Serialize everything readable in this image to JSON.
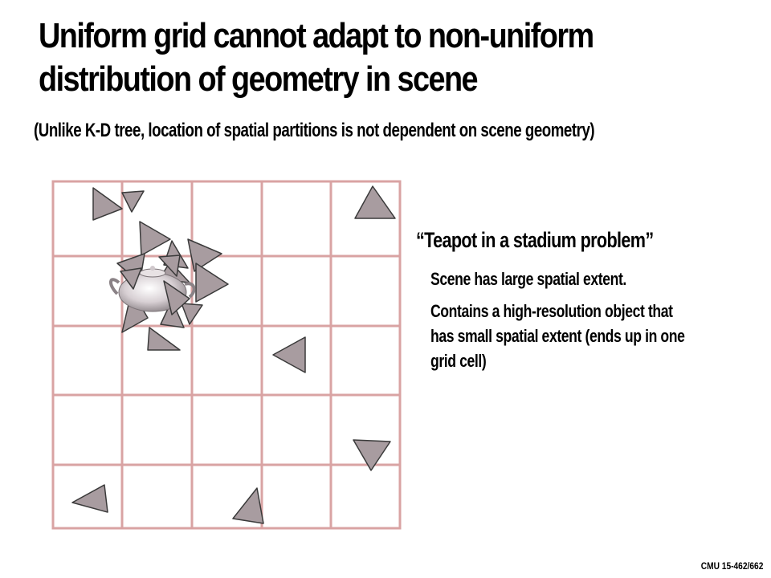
{
  "slide": {
    "title_lines": [
      "Uniform grid cannot adapt to non-uniform",
      "distribution of geometry in scene"
    ],
    "subtitle": "(Unlike K-D tree, location of spatial partitions is not dependent on scene geometry)",
    "callout": {
      "heading": "“Teapot in a stadium problem”",
      "bullets": [
        {
          "lines": [
            "Scene has large spatial extent."
          ]
        },
        {
          "lines": [
            "Contains a high-resolution object that",
            "has small spatial extent (ends up in one",
            "grid cell)"
          ]
        }
      ]
    },
    "footer": "CMU 15-462/662"
  },
  "figure": {
    "grid_lines_color": "#d9a3a3",
    "triangle_fill": "#a89ca0",
    "triangle_stroke": "#3a3a3a",
    "teapot_color": "#c8c0c4"
  }
}
